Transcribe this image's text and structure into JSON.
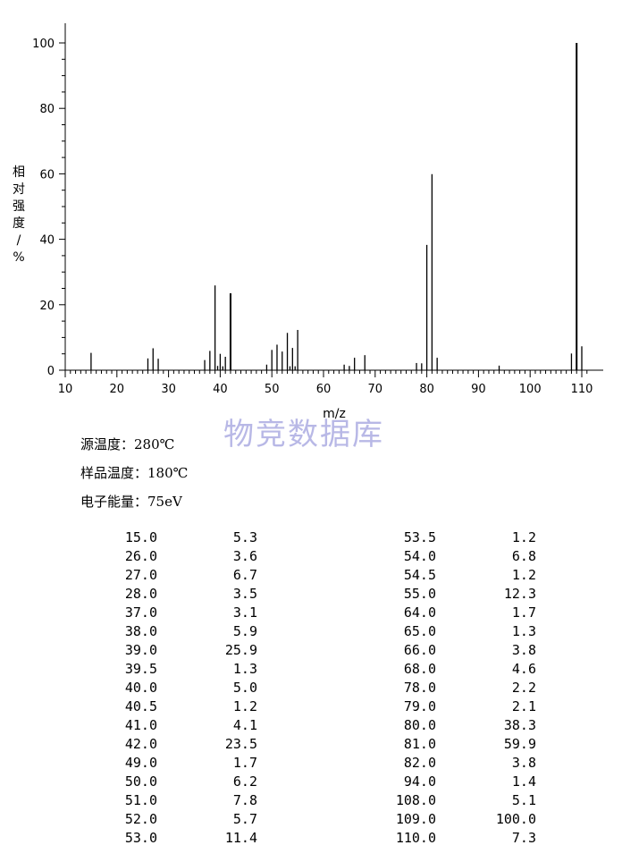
{
  "chart_data": {
    "type": "bar",
    "xlabel": "m/z",
    "ylabel": "相对强度/%",
    "xlim": [
      10,
      112
    ],
    "ylim": [
      0,
      100
    ],
    "xticks": [
      10,
      20,
      30,
      40,
      50,
      60,
      70,
      80,
      90,
      100,
      110
    ],
    "yticks": [
      0,
      20,
      40,
      60,
      80,
      100
    ],
    "peaks": [
      {
        "x": 15.0,
        "y": 5.3
      },
      {
        "x": 26.0,
        "y": 3.6
      },
      {
        "x": 27.0,
        "y": 6.7
      },
      {
        "x": 28.0,
        "y": 3.5
      },
      {
        "x": 37.0,
        "y": 3.1
      },
      {
        "x": 38.0,
        "y": 5.9
      },
      {
        "x": 39.0,
        "y": 25.9
      },
      {
        "x": 39.5,
        "y": 1.3
      },
      {
        "x": 40.0,
        "y": 5.0
      },
      {
        "x": 40.5,
        "y": 1.2
      },
      {
        "x": 41.0,
        "y": 4.1
      },
      {
        "x": 42.0,
        "y": 23.5
      },
      {
        "x": 49.0,
        "y": 1.7
      },
      {
        "x": 50.0,
        "y": 6.2
      },
      {
        "x": 51.0,
        "y": 7.8
      },
      {
        "x": 52.0,
        "y": 5.7
      },
      {
        "x": 53.0,
        "y": 11.4
      },
      {
        "x": 53.5,
        "y": 1.2
      },
      {
        "x": 54.0,
        "y": 6.8
      },
      {
        "x": 54.5,
        "y": 1.2
      },
      {
        "x": 55.0,
        "y": 12.3
      },
      {
        "x": 64.0,
        "y": 1.7
      },
      {
        "x": 65.0,
        "y": 1.3
      },
      {
        "x": 66.0,
        "y": 3.8
      },
      {
        "x": 68.0,
        "y": 4.6
      },
      {
        "x": 78.0,
        "y": 2.2
      },
      {
        "x": 79.0,
        "y": 2.1
      },
      {
        "x": 80.0,
        "y": 38.3
      },
      {
        "x": 81.0,
        "y": 59.9
      },
      {
        "x": 82.0,
        "y": 3.8
      },
      {
        "x": 94.0,
        "y": 1.4
      },
      {
        "x": 108.0,
        "y": 5.1
      },
      {
        "x": 109.0,
        "y": 100.0
      },
      {
        "x": 110.0,
        "y": 7.3
      }
    ]
  },
  "watermark": "物竞数据库",
  "conditions": [
    {
      "label": "源温度：",
      "value": "280℃"
    },
    {
      "label": "样品温度：",
      "value": "180℃"
    },
    {
      "label": "电子能量：",
      "value": "75eV"
    }
  ],
  "table_left": [
    [
      "15.0",
      "5.3"
    ],
    [
      "26.0",
      "3.6"
    ],
    [
      "27.0",
      "6.7"
    ],
    [
      "28.0",
      "3.5"
    ],
    [
      "37.0",
      "3.1"
    ],
    [
      "38.0",
      "5.9"
    ],
    [
      "39.0",
      "25.9"
    ],
    [
      "39.5",
      "1.3"
    ],
    [
      "40.0",
      "5.0"
    ],
    [
      "40.5",
      "1.2"
    ],
    [
      "41.0",
      "4.1"
    ],
    [
      "42.0",
      "23.5"
    ],
    [
      "49.0",
      "1.7"
    ],
    [
      "50.0",
      "6.2"
    ],
    [
      "51.0",
      "7.8"
    ],
    [
      "52.0",
      "5.7"
    ],
    [
      "53.0",
      "11.4"
    ]
  ],
  "table_right": [
    [
      "53.5",
      "1.2"
    ],
    [
      "54.0",
      "6.8"
    ],
    [
      "54.5",
      "1.2"
    ],
    [
      "55.0",
      "12.3"
    ],
    [
      "64.0",
      "1.7"
    ],
    [
      "65.0",
      "1.3"
    ],
    [
      "66.0",
      "3.8"
    ],
    [
      "68.0",
      "4.6"
    ],
    [
      "78.0",
      "2.2"
    ],
    [
      "79.0",
      "2.1"
    ],
    [
      "80.0",
      "38.3"
    ],
    [
      "81.0",
      "59.9"
    ],
    [
      "82.0",
      "3.8"
    ],
    [
      "94.0",
      "1.4"
    ],
    [
      "108.0",
      "5.1"
    ],
    [
      "109.0",
      "100.0"
    ],
    [
      "110.0",
      "7.3"
    ]
  ]
}
